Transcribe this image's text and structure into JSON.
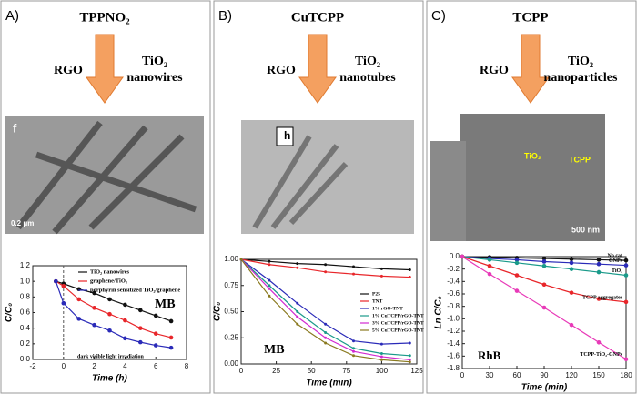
{
  "panels": [
    {
      "label": "A)",
      "dye": "TPPNO₂",
      "left": "RGO",
      "right": [
        "TiO₂",
        "nanowires"
      ],
      "image_labels": [
        "f",
        "0.2 μm"
      ]
    },
    {
      "label": "B)",
      "dye": "CuTCPP",
      "left": "RGO",
      "right": [
        "TiO₂",
        "nanotubes"
      ],
      "image_labels": [
        "h"
      ]
    },
    {
      "label": "C)",
      "dye": "TCPP",
      "left": "RGO",
      "right": [
        "TiO₂",
        "nanoparticles"
      ],
      "image_labels": [
        "TiO₂",
        "TCPP",
        "500 nm"
      ]
    }
  ],
  "chart_data": [
    {
      "type": "line",
      "x_label": "Time (h)",
      "y_label": "C/C₀",
      "annotations": [
        "MB",
        "dark visible light irradiation"
      ],
      "x": [
        -0.5,
        0,
        1,
        2,
        3,
        4,
        5,
        6,
        7
      ],
      "xlim": [
        -2,
        8
      ],
      "xticks": [
        -2,
        0,
        2,
        4,
        6,
        8
      ],
      "ylim": [
        0,
        1.2
      ],
      "yticks": [
        {
          "value": 0,
          "label": "0.0"
        },
        0.2,
        0.4,
        0.6,
        0.8,
        {
          "value": 1,
          "label": "1.0"
        },
        1.2
      ],
      "legend": "upper right",
      "series": [
        {
          "name": "TiO₂ nanowires",
          "color": "#111111",
          "values": [
            1.0,
            0.97,
            0.9,
            0.85,
            0.77,
            0.7,
            0.63,
            0.56,
            0.49
          ]
        },
        {
          "name": "graphene/TiO₂",
          "color": "#e8262a",
          "values": [
            1.0,
            0.94,
            0.77,
            0.66,
            0.58,
            0.5,
            0.4,
            0.33,
            0.28
          ]
        },
        {
          "name": "porphyrin sensitized TiO₂/graphene",
          "color": "#2a2ab8",
          "values": [
            1.0,
            0.72,
            0.52,
            0.44,
            0.37,
            0.27,
            0.22,
            0.18,
            0.15
          ]
        }
      ]
    },
    {
      "type": "line",
      "x_label": "Time (min)",
      "y_label": "C/C₀",
      "annotations": [
        "MB"
      ],
      "x": [
        0,
        20,
        40,
        60,
        80,
        100,
        120
      ],
      "xlim": [
        0,
        125
      ],
      "xticks": [
        0,
        25,
        50,
        75,
        100,
        125
      ],
      "ylim": [
        0,
        1
      ],
      "yticks": [
        {
          "value": 0,
          "label": "0.00"
        },
        0.25,
        {
          "value": 0.5,
          "label": "0.50"
        },
        0.75,
        {
          "value": 1,
          "label": "1.00"
        }
      ],
      "legend": "center right",
      "series": [
        {
          "name": "P25",
          "color": "#111111",
          "values": [
            1,
            0.98,
            0.96,
            0.95,
            0.93,
            0.91,
            0.9
          ]
        },
        {
          "name": "TNT",
          "color": "#e8262a",
          "values": [
            1,
            0.95,
            0.92,
            0.88,
            0.86,
            0.84,
            0.83
          ]
        },
        {
          "name": "1% rGO-TNT",
          "color": "#2a2ab8",
          "values": [
            1,
            0.8,
            0.58,
            0.38,
            0.22,
            0.19,
            0.2
          ]
        },
        {
          "name": "1% CuTCPP/rGO-TNT",
          "color": "#1a9a8a",
          "values": [
            1,
            0.75,
            0.5,
            0.3,
            0.15,
            0.1,
            0.08
          ]
        },
        {
          "name": "3% CuTCPP/rGO-TNT",
          "color": "#d12ad1",
          "values": [
            1,
            0.72,
            0.45,
            0.25,
            0.12,
            0.07,
            0.04
          ]
        },
        {
          "name": "5% CuTCPP/rGO-TNT",
          "color": "#8a7a20",
          "values": [
            1,
            0.65,
            0.38,
            0.2,
            0.08,
            0.04,
            0.02
          ]
        }
      ]
    },
    {
      "type": "line",
      "x_label": "Time (min)",
      "y_label": "Ln C/C₀",
      "annotations": [
        "RhB"
      ],
      "x": [
        0,
        30,
        60,
        90,
        120,
        150,
        180
      ],
      "xlim": [
        0,
        180
      ],
      "xticks": [
        0,
        30,
        60,
        90,
        120,
        150,
        180
      ],
      "ylim": [
        -1.8,
        0
      ],
      "yticks": [
        -1.8,
        -1.6,
        -1.4,
        -1.2,
        {
          "value": -1,
          "label": "-1.0"
        },
        -0.8,
        -0.6,
        -0.4,
        -0.2,
        {
          "value": 0,
          "label": "0.0"
        }
      ],
      "legend": "inline",
      "series": [
        {
          "name": "No cat",
          "color": "#111111",
          "values": [
            0,
            -0.01,
            -0.02,
            -0.03,
            -0.04,
            -0.05,
            -0.06
          ]
        },
        {
          "name": "GNPs",
          "color": "#2a2ab8",
          "values": [
            0,
            -0.03,
            -0.05,
            -0.08,
            -0.1,
            -0.12,
            -0.14
          ]
        },
        {
          "name": "TiO₂",
          "color": "#1a9a8a",
          "values": [
            0,
            -0.05,
            -0.1,
            -0.15,
            -0.2,
            -0.25,
            -0.3
          ]
        },
        {
          "name": "TCPP aggregates",
          "color": "#e8262a",
          "values": [
            0,
            -0.15,
            -0.3,
            -0.45,
            -0.58,
            -0.68,
            -0.73
          ]
        },
        {
          "name": "TCPP-TiO₂-GNPs",
          "color": "#e83ab8",
          "values": [
            0,
            -0.28,
            -0.55,
            -0.82,
            -1.1,
            -1.38,
            -1.65
          ]
        }
      ]
    }
  ]
}
